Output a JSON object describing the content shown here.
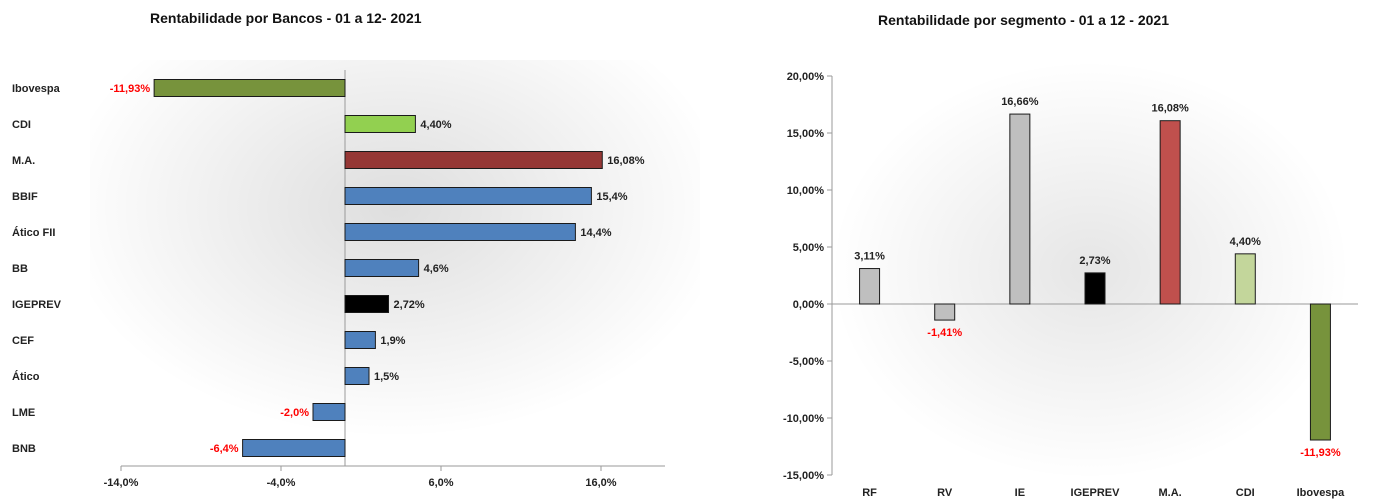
{
  "chart_data": [
    {
      "type": "bar",
      "orientation": "horizontal",
      "title": "Rentabilidade por Bancos - 01 a 12- 2021",
      "categories": [
        "Ibovespa",
        "CDI",
        "M.A.",
        "BBIF",
        "Ático FII",
        "BB",
        "IGEPREV",
        "CEF",
        "Ático",
        "LME",
        "BNB"
      ],
      "values": [
        -11.93,
        4.4,
        16.08,
        15.4,
        14.4,
        4.6,
        2.72,
        1.9,
        1.5,
        -2.0,
        -6.4
      ],
      "data_labels": [
        "-11,93%",
        "4,40%",
        "16,08%",
        "15,4%",
        "14,4%",
        "4,6%",
        "2,72%",
        "1,9%",
        "1,5%",
        "-2,0%",
        "-6,4%"
      ],
      "colors": [
        "#77933c",
        "#92d050",
        "#953735",
        "#4f81bd",
        "#4f81bd",
        "#4f81bd",
        "#000000",
        "#4f81bd",
        "#4f81bd",
        "#4f81bd",
        "#4f81bd"
      ],
      "negative_label_color": "#ff0000",
      "xlim": [
        -14,
        20
      ],
      "xticks": [
        -14,
        -4,
        6,
        16
      ],
      "xtick_labels": [
        "-14,0%",
        "-4,0%",
        "6,0%",
        "16,0%"
      ],
      "grid": false
    },
    {
      "type": "bar",
      "orientation": "vertical",
      "title": "Rentabilidade por segmento - 01 a 12 - 2021",
      "categories": [
        "RF",
        "RV",
        "IE",
        "IGEPREV",
        "M.A.",
        "CDI",
        "Ibovespa"
      ],
      "values": [
        3.11,
        -1.41,
        16.66,
        2.73,
        16.08,
        4.4,
        -11.93
      ],
      "data_labels": [
        "3,11%",
        "-1,41%",
        "16,66%",
        "2,73%",
        "16,08%",
        "4,40%",
        "-11,93%"
      ],
      "colors": [
        "#bfbfbf",
        "#bfbfbf",
        "#bfbfbf",
        "#000000",
        "#c0504d",
        "#c3d69b",
        "#77933c"
      ],
      "negative_label_color": "#ff0000",
      "ylim": [
        -15,
        20
      ],
      "yticks": [
        -15,
        -10,
        -5,
        0,
        5,
        10,
        15,
        20
      ],
      "ytick_labels": [
        "-15,00%",
        "-10,00%",
        "-5,00%",
        "0,00%",
        "5,00%",
        "10,00%",
        "15,00%",
        "20,00%"
      ],
      "grid": false
    }
  ]
}
